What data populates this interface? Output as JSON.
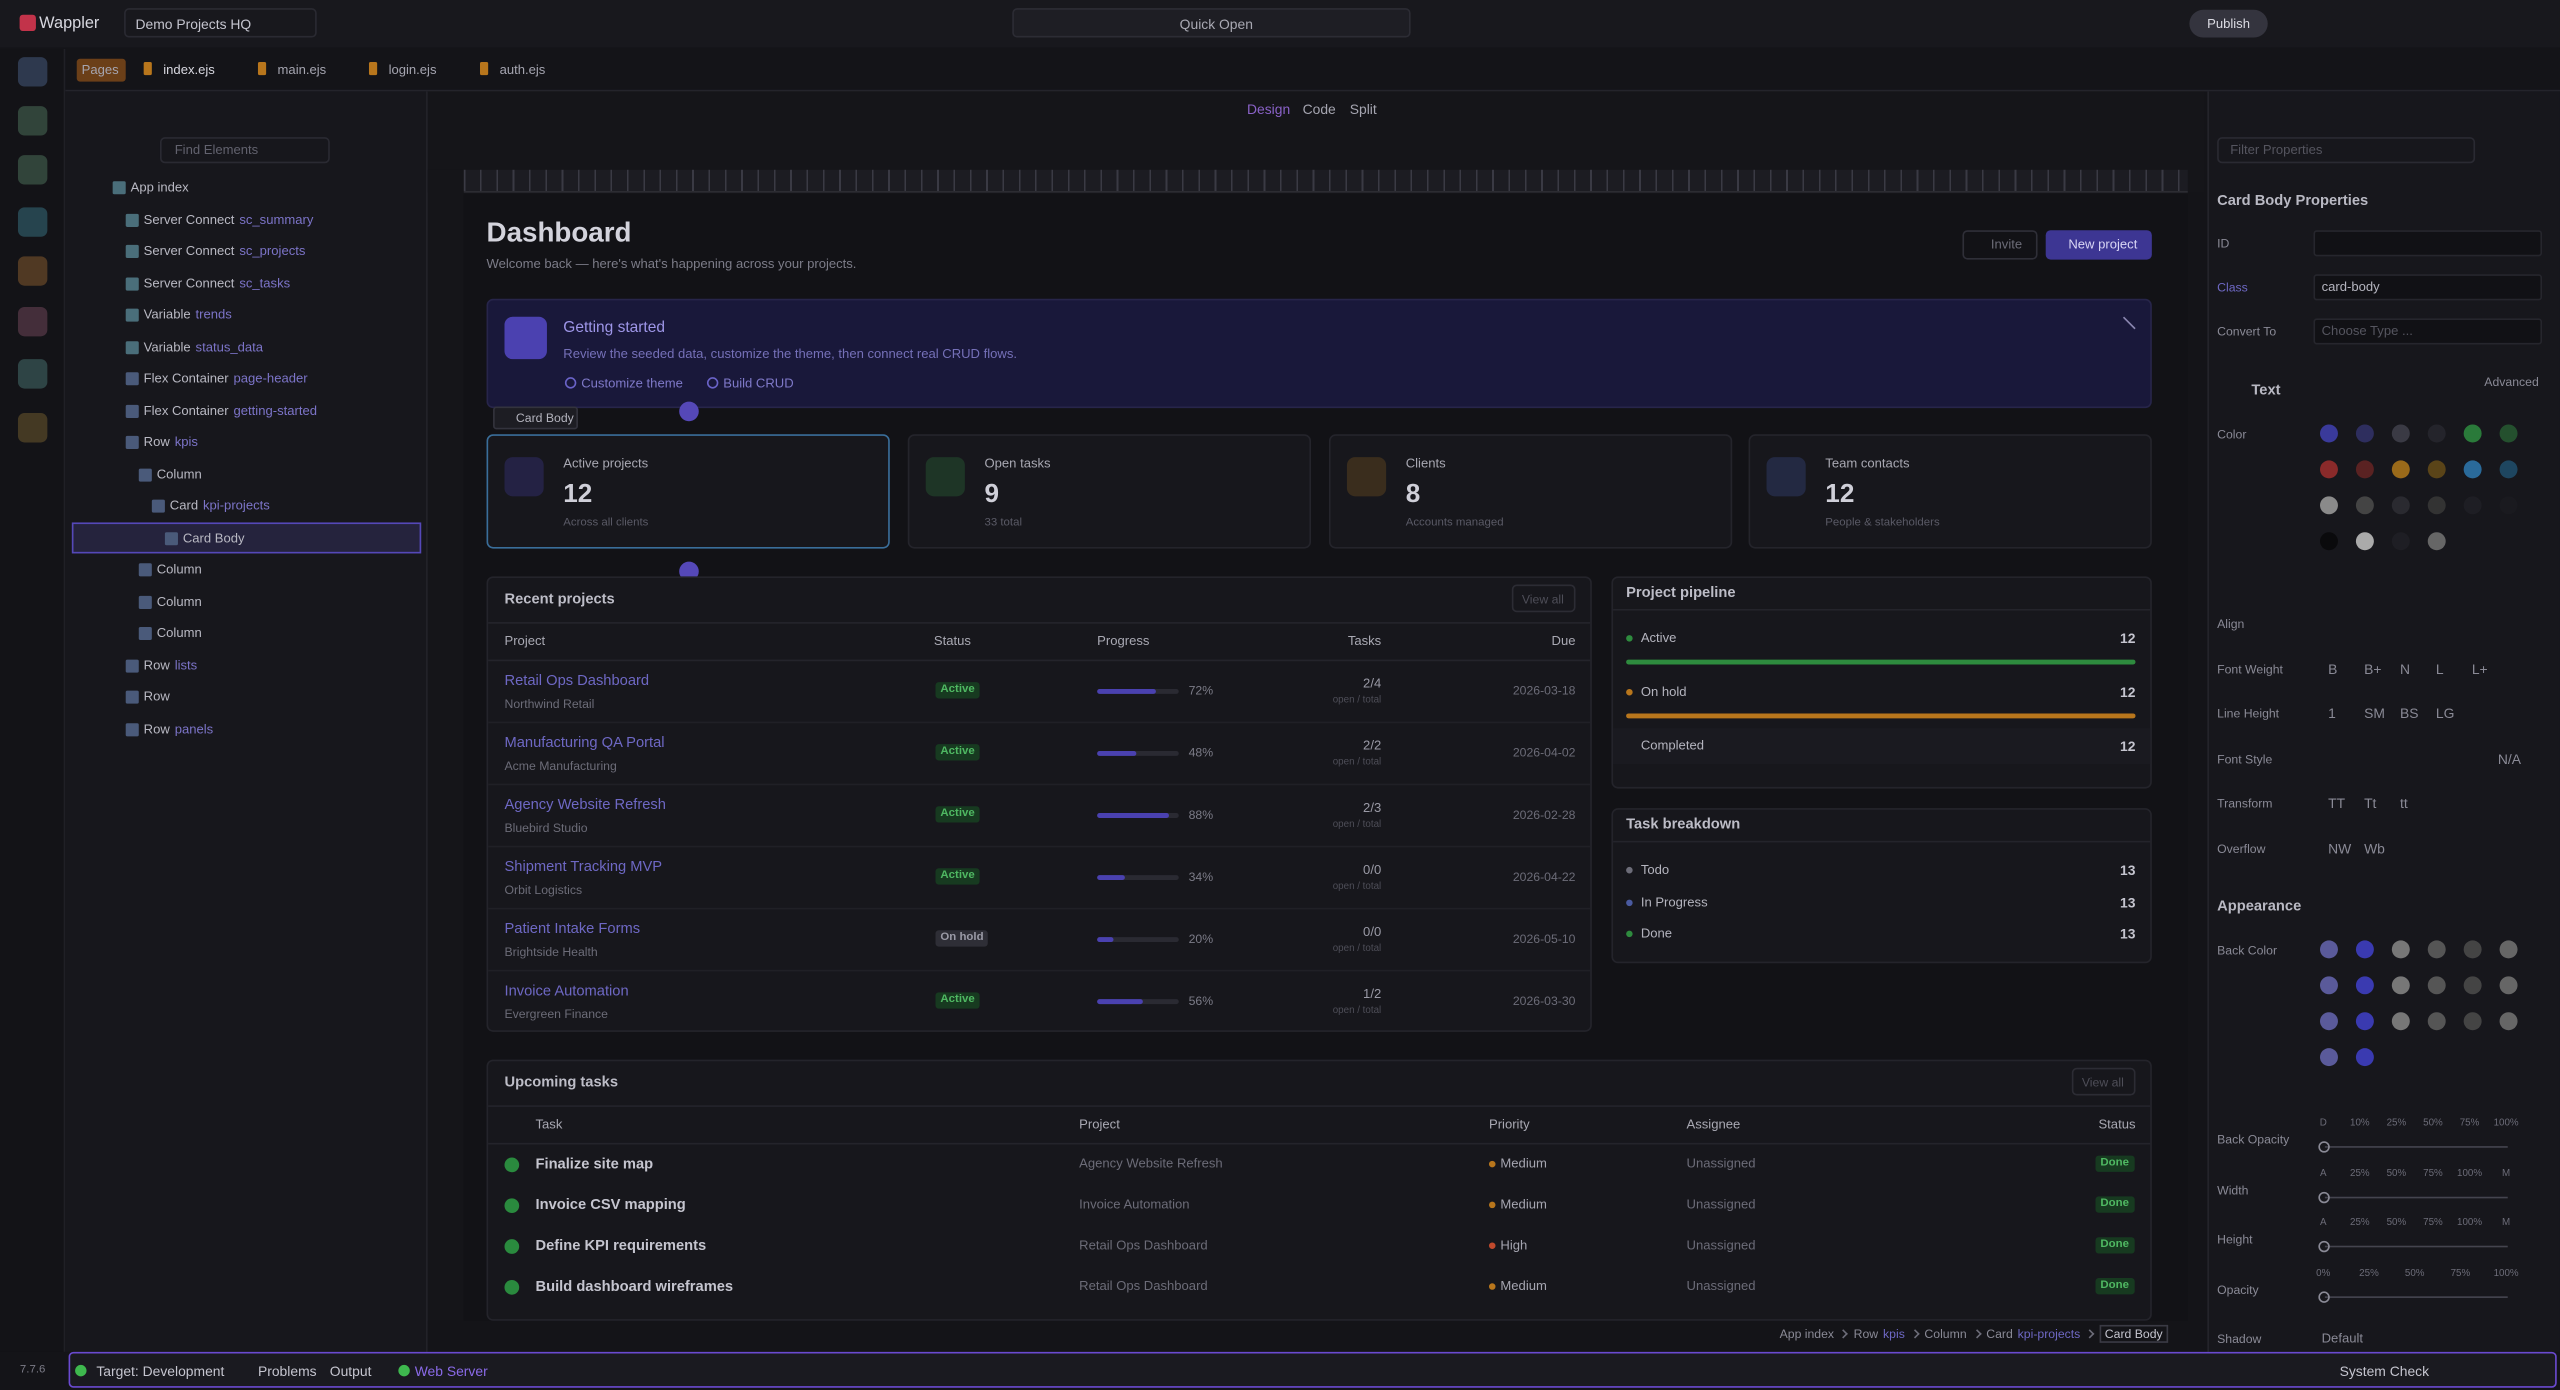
{
  "app": {
    "brand": "Wappler",
    "project": "Demo Projects HQ",
    "quick_open": "Quick Open",
    "publish": "Publish",
    "version": "7.7.6"
  },
  "tabs": [
    "Pages",
    "index.ejs",
    "main.ejs",
    "login.ejs",
    "auth.ejs"
  ],
  "elements_panel": {
    "search": "Find Elements",
    "tree": [
      {
        "label": "App index"
      },
      {
        "label": "Server Connect",
        "id": "sc_summary"
      },
      {
        "label": "Server Connect",
        "id": "sc_projects"
      },
      {
        "label": "Server Connect",
        "id": "sc_tasks"
      },
      {
        "label": "Variable",
        "id": "trends"
      },
      {
        "label": "Variable",
        "id": "status_data"
      },
      {
        "label": "Flex Container",
        "id": "page-header"
      },
      {
        "label": "Flex Container",
        "id": "getting-started"
      },
      {
        "label": "Row",
        "id": "kpis"
      },
      {
        "label": "Column"
      },
      {
        "label": "Card",
        "id": "kpi-projects"
      },
      {
        "label": "Card Body"
      },
      {
        "label": "Column"
      },
      {
        "label": "Column"
      },
      {
        "label": "Column"
      },
      {
        "label": "Row",
        "id": "lists"
      },
      {
        "label": "Row"
      },
      {
        "label": "Row",
        "id": "panels"
      }
    ]
  },
  "view_modes": [
    "Design",
    "Code",
    "Split"
  ],
  "dashboard": {
    "title": "Dashboard",
    "subtitle": "Welcome back — here's what's happening across your projects.",
    "invite": "Invite",
    "new_project": "New project",
    "banner": {
      "title": "Getting started",
      "text": "Review the seeded data, customize the theme, then connect real CRUD flows.",
      "links": [
        "Customize theme",
        "Build CRUD"
      ]
    },
    "selection_label": "Card Body",
    "kpis": [
      {
        "label": "Active projects",
        "value": 12,
        "note": "Across all clients"
      },
      {
        "label": "Open tasks",
        "value": 9,
        "note": "33 total"
      },
      {
        "label": "Clients",
        "value": 8,
        "note": "Accounts managed"
      },
      {
        "label": "Team contacts",
        "value": 12,
        "note": "People & stakeholders"
      }
    ],
    "recent_projects": {
      "title": "Recent projects",
      "view_all": "View all",
      "columns": [
        "Project",
        "Status",
        "Progress",
        "Tasks",
        "Due"
      ],
      "rows": [
        {
          "name": "Retail Ops Dashboard",
          "client": "Northwind Retail",
          "status": "Active",
          "progress": 72,
          "progress_label": "72%",
          "tasks": "2/4",
          "tasks_note": "open / total",
          "due": "2026-03-18"
        },
        {
          "name": "Manufacturing QA Portal",
          "client": "Acme Manufacturing",
          "status": "Active",
          "progress": 48,
          "progress_label": "48%",
          "tasks": "2/2",
          "tasks_note": "open / total",
          "due": "2026-04-02"
        },
        {
          "name": "Agency Website Refresh",
          "client": "Bluebird Studio",
          "status": "Active",
          "progress": 88,
          "progress_label": "88%",
          "tasks": "2/3",
          "tasks_note": "open / total",
          "due": "2026-02-28"
        },
        {
          "name": "Shipment Tracking MVP",
          "client": "Orbit Logistics",
          "status": "Active",
          "progress": 34,
          "progress_label": "34%",
          "tasks": "0/0",
          "tasks_note": "open / total",
          "due": "2026-04-22"
        },
        {
          "name": "Patient Intake Forms",
          "client": "Brightside Health",
          "status": "On hold",
          "progress": 20,
          "progress_label": "20%",
          "tasks": "0/0",
          "tasks_note": "open / total",
          "due": "2026-05-10"
        },
        {
          "name": "Invoice Automation",
          "client": "Evergreen Finance",
          "status": "Active",
          "progress": 56,
          "progress_label": "56%",
          "tasks": "1/2",
          "tasks_note": "open / total",
          "due": "2026-03-30"
        }
      ]
    },
    "pipeline": {
      "title": "Project pipeline",
      "items": [
        {
          "label": "Active",
          "value": 12
        },
        {
          "label": "On hold",
          "value": 12
        },
        {
          "label": "Completed",
          "value": 12
        }
      ]
    },
    "task_breakdown": {
      "title": "Task breakdown",
      "items": [
        {
          "label": "Todo",
          "value": 13
        },
        {
          "label": "In Progress",
          "value": 13
        },
        {
          "label": "Done",
          "value": 13
        }
      ]
    },
    "upcoming_tasks": {
      "title": "Upcoming tasks",
      "view_all": "View all",
      "columns": [
        "Task",
        "Project",
        "Priority",
        "Assignee",
        "Status"
      ],
      "rows": [
        {
          "task": "Finalize site map",
          "project": "Agency Website Refresh",
          "priority": "Medium",
          "assignee": "Unassigned",
          "status": "Done"
        },
        {
          "task": "Invoice CSV mapping",
          "project": "Invoice Automation",
          "priority": "Medium",
          "assignee": "Unassigned",
          "status": "Done"
        },
        {
          "task": "Define KPI requirements",
          "project": "Retail Ops Dashboard",
          "priority": "High",
          "assignee": "Unassigned",
          "status": "Done"
        },
        {
          "task": "Build dashboard wireframes",
          "project": "Retail Ops Dashboard",
          "priority": "Medium",
          "assignee": "Unassigned",
          "status": "Done"
        }
      ]
    }
  },
  "breadcrumb": [
    {
      "label": "App index"
    },
    {
      "label": "Row",
      "id": "kpis"
    },
    {
      "label": "Column"
    },
    {
      "label": "Card",
      "id": "kpi-projects"
    },
    {
      "label": "Card Body"
    }
  ],
  "properties": {
    "filter": "Filter Properties",
    "title": "Card Body Properties",
    "fields": [
      {
        "label": "ID"
      },
      {
        "label": "Class",
        "value": "card-body"
      },
      {
        "label": "Convert To",
        "placeholder": "Choose Type ..."
      }
    ],
    "text_section": {
      "title": "Text",
      "advanced": "Advanced",
      "rows": [
        {
          "label": "Color"
        },
        {
          "label": "Align"
        },
        {
          "label": "Font Weight",
          "options": [
            "B",
            "B+",
            "N",
            "L",
            "L+"
          ]
        },
        {
          "label": "Line Height",
          "options": [
            "1",
            "SM",
            "BS",
            "LG"
          ]
        },
        {
          "label": "Font Style",
          "options": [
            "N/A"
          ]
        },
        {
          "label": "Transform",
          "options": [
            "TT",
            "Tt",
            "tt"
          ]
        },
        {
          "label": "Overflow",
          "options": [
            "NW",
            "Wb"
          ]
        }
      ]
    },
    "appearance": {
      "title": "Appearance",
      "rows": [
        {
          "label": "Back Color"
        },
        {
          "label": "Back Opacity",
          "scale": [
            "D",
            "10%",
            "25%",
            "50%",
            "75%",
            "100%"
          ]
        },
        {
          "label": "Width",
          "scale": [
            "A",
            "25%",
            "50%",
            "75%",
            "100%",
            "M"
          ]
        },
        {
          "label": "Height",
          "scale": [
            "A",
            "25%",
            "50%",
            "75%",
            "100%",
            "M"
          ]
        },
        {
          "label": "Opacity",
          "scale": [
            "0%",
            "25%",
            "50%",
            "75%",
            "100%"
          ]
        },
        {
          "label": "Shadow",
          "value": "Default"
        }
      ]
    }
  },
  "status_bar": {
    "target": "Target: Development",
    "problems": "Problems",
    "output": "Output",
    "web_server": "Web Server",
    "system_check": "System Check"
  }
}
